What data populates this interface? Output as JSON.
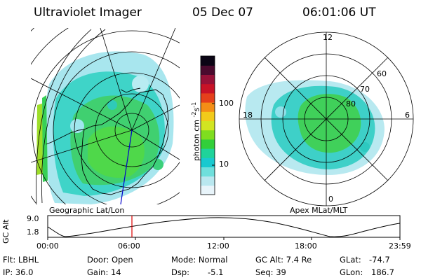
{
  "header": {
    "instrument": "Ultraviolet Imager",
    "date": "05 Dec 07",
    "time": "06:01:06 UT"
  },
  "geo_panel": {
    "caption": "Geographic Lat/Lon"
  },
  "apex_panel": {
    "caption": "Apex MLat/MLT",
    "mlt_labels": [
      "12",
      "18",
      "6",
      "0"
    ],
    "mlat_labels": [
      "60",
      "70",
      "80"
    ]
  },
  "colorbar": {
    "unit_label": "photon cm",
    "unit_exp1": "-2",
    "unit_s": "s",
    "unit_exp2": "-1",
    "tick_labels": [
      "100",
      "10"
    ],
    "scale": "log",
    "colors": [
      "#e8f4fa",
      "#b9e7ef",
      "#6fdfdc",
      "#19c9cf",
      "#1fd39a",
      "#32cf3a",
      "#7fdd1f",
      "#d2e521",
      "#f2ca1a",
      "#f48e16",
      "#e5401b",
      "#c81227",
      "#971138",
      "#4b0a2e",
      "#0b0515"
    ]
  },
  "altitude_plot": {
    "ylabel": "GC Alt",
    "ytick_labels": [
      "9.0",
      "1.8"
    ],
    "xtick_labels": [
      "00:00",
      "06:00",
      "12:00",
      "18:00",
      "23:59"
    ],
    "marker_color": "#dd0000"
  },
  "info": {
    "filter": "Flt: LBHL",
    "ip": "IP: 36.0",
    "door": "Door: Open",
    "gain": "Gain: 14",
    "mode": "Mode: Normal",
    "dsp_label": "Dsp:",
    "dsp_value": "-5.1",
    "gc_alt": "GC Alt: 7.4 Re",
    "seq": "Seq: 39",
    "glat_label": "GLat:",
    "glat_value": "-74.7",
    "glon_label": "GLon:",
    "glon_value": "186.7"
  }
}
